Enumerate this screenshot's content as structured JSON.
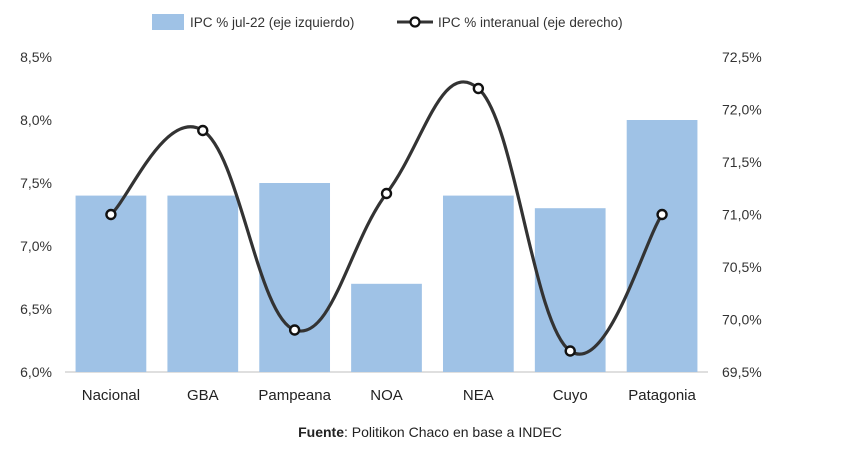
{
  "chart_data": {
    "type": "bar",
    "categories": [
      "Nacional",
      "GBA",
      "Pampeana",
      "NOA",
      "NEA",
      "Cuyo",
      "Patagonia"
    ],
    "series": [
      {
        "name": "IPC % jul-22 (eje izquierdo)",
        "type": "bar",
        "axis": "left",
        "color": "#9fc2e6",
        "values": [
          7.4,
          7.4,
          7.5,
          6.7,
          7.4,
          7.3,
          8.0
        ]
      },
      {
        "name": "IPC % interanual (eje derecho)",
        "type": "line",
        "axis": "right",
        "color": "#333333",
        "values": [
          71.0,
          71.8,
          69.9,
          71.2,
          72.2,
          69.7,
          71.0
        ]
      }
    ],
    "left_axis": {
      "ylim": [
        6.0,
        8.5
      ],
      "ticks": [
        "6,0%",
        "6,5%",
        "7,0%",
        "7,5%",
        "8,0%",
        "8,5%"
      ]
    },
    "right_axis": {
      "ylim": [
        69.5,
        72.5
      ],
      "ticks": [
        "69,5%",
        "70,0%",
        "70,5%",
        "71,0%",
        "71,5%",
        "72,0%",
        "72,5%"
      ]
    },
    "grid": false,
    "legend_position": "top"
  },
  "source": {
    "label": "Fuente",
    "text": ": Politikon Chaco en base a INDEC"
  }
}
